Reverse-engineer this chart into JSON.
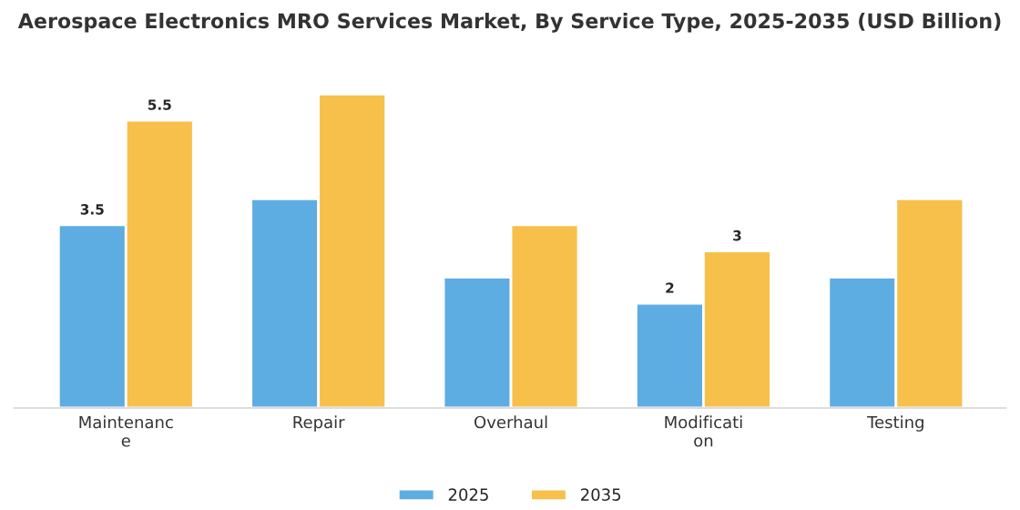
{
  "chart_data": {
    "type": "bar",
    "title": "Aerospace Electronics MRO Services Market, By Service Type, 2025-2035 (USD Billion)",
    "categories": [
      "Maintenanc\ne",
      "Repair",
      "Overhaul",
      "Modificati\non",
      "Testing"
    ],
    "series": [
      {
        "name": "2025",
        "color": "#5dade2",
        "values": [
          3.5,
          4.0,
          2.5,
          2.0,
          2.5
        ],
        "value_labels": [
          "3.5",
          null,
          null,
          "2",
          null
        ]
      },
      {
        "name": "2035",
        "color": "#f7c04a",
        "values": [
          5.5,
          6.0,
          3.5,
          3.0,
          4.0
        ],
        "value_labels": [
          "5.5",
          null,
          null,
          "3",
          null
        ]
      }
    ],
    "tick_labels": "x",
    "grid": false,
    "legend": "bottom"
  }
}
